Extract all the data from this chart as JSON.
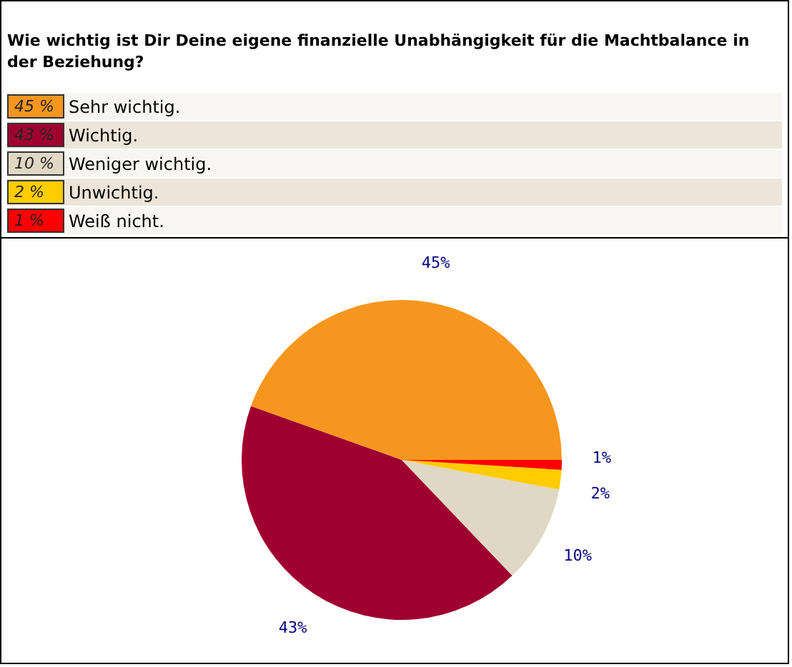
{
  "chart_data": {
    "type": "pie",
    "title": "Wie wichtig ist Dir Deine eigene finanzielle Unabhängigkeit für die Machtbalance in der Beziehung?",
    "categories": [
      "Sehr wichtig.",
      "Wichtig.",
      "Weniger wichtig.",
      "Unwichtig.",
      "Weiß nicht."
    ],
    "values": [
      45,
      43,
      10,
      2,
      1
    ],
    "colors": [
      "#f7961e",
      "#a00030",
      "#e0d8c4",
      "#ffcc00",
      "#ff0000"
    ],
    "value_labels": [
      "45%",
      "43%",
      "10%",
      "2%",
      "1%"
    ],
    "annotations": [
      "45 %",
      "43 %",
      "10 %",
      "2 %",
      "1 %"
    ],
    "legend": "top"
  }
}
